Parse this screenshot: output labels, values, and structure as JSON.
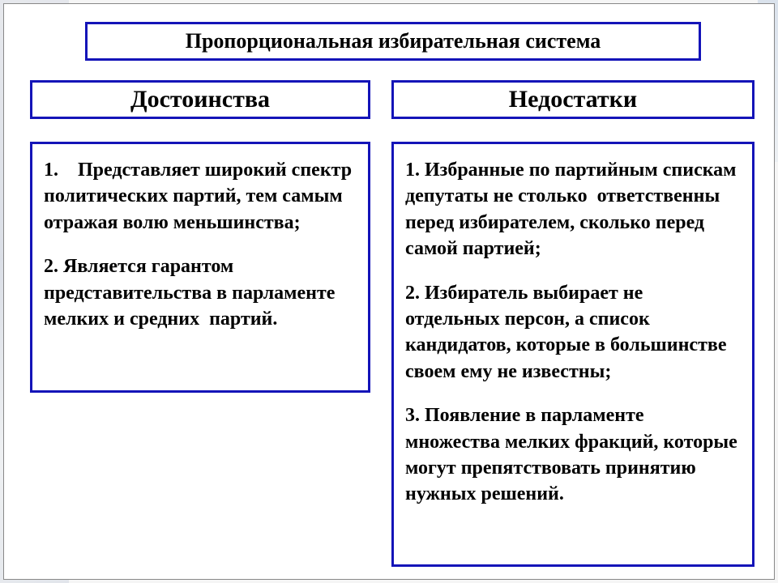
{
  "colors": {
    "border": "#1414b8",
    "text": "#000000",
    "background": "#ffffff"
  },
  "typography": {
    "title_fontsize": 26,
    "header_fontsize": 30,
    "body_fontsize": 24,
    "font_family": "Times New Roman",
    "weight": "bold"
  },
  "title": "Пропорциональная избирательная система",
  "columns": {
    "left": {
      "header": "Достоинства",
      "points": [
        "1. Представляет широкий спектр политических партий, тем самым  отражая волю меньшинства;",
        "2. Является гарантом представительства в парламенте мелких и средних  партий."
      ]
    },
    "right": {
      "header": "Недостатки",
      "points": [
        "1. Избранные по партийным спискам депутаты не столько  ответственны перед избирателем, сколько перед самой партией;",
        "2. Избиратель выбирает не отдельных персон, а список кандидатов, которые в большинстве своем ему не известны;",
        "3. Появление в парламенте множества мелких фракций, которые могут препятствовать принятию нужных решений."
      ]
    }
  }
}
